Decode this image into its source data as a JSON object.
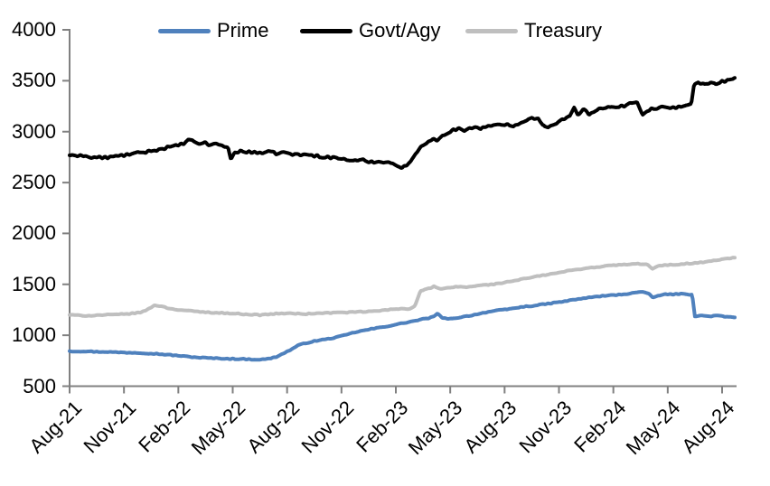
{
  "page": {
    "background": "#ffffff"
  },
  "legend": {
    "position": "top",
    "items": [
      {
        "label": "Prime",
        "color": "#4F81BD"
      },
      {
        "label": "Govt/Agy",
        "color": "#000000"
      },
      {
        "label": "Treasury",
        "color": "#BFBFBF"
      }
    ]
  },
  "axes": {
    "axis_color": "#808080",
    "y_labels": [
      "4000",
      "3500",
      "3000",
      "2500",
      "2000",
      "1500",
      "1000",
      "500"
    ],
    "x_labels": [
      "Aug-21",
      "Nov-21",
      "Feb-22",
      "May-22",
      "Aug-22",
      "Nov-22",
      "Feb-23",
      "May-23",
      "Aug-23",
      "Nov-23",
      "Feb-24",
      "May-24",
      "Aug-24"
    ]
  },
  "chart_data": {
    "type": "line",
    "title": "",
    "xlabel": "",
    "ylabel": "",
    "grid": false,
    "legend_position": "top",
    "x_axis": {
      "unit": "months since Aug-2021",
      "tick_labels": [
        "Aug-21",
        "Nov-21",
        "Feb-22",
        "May-22",
        "Aug-22",
        "Nov-22",
        "Feb-23",
        "May-23",
        "Aug-23",
        "Nov-23",
        "Feb-24",
        "May-24",
        "Aug-24"
      ],
      "tick_month_index": [
        0,
        3,
        6,
        9,
        12,
        15,
        18,
        21,
        24,
        27,
        30,
        33,
        36
      ]
    },
    "y_axis": {
      "min": 500,
      "max": 4000,
      "tick_step": 500,
      "ticks": [
        500,
        1000,
        1500,
        2000,
        2500,
        3000,
        3500,
        4000
      ]
    },
    "series": [
      {
        "name": "Prime",
        "color": "#4F81BD",
        "points": [
          [
            0,
            845
          ],
          [
            0.4,
            842
          ],
          [
            0.8,
            844
          ],
          [
            1.2,
            840
          ],
          [
            1.6,
            837
          ],
          [
            2,
            838
          ],
          [
            2.4,
            834
          ],
          [
            2.8,
            832
          ],
          [
            3.2,
            830
          ],
          [
            3.6,
            829
          ],
          [
            4,
            827
          ],
          [
            4.4,
            822
          ],
          [
            4.8,
            818
          ],
          [
            5.2,
            812
          ],
          [
            5.6,
            806
          ],
          [
            6,
            800
          ],
          [
            6.4,
            792
          ],
          [
            6.8,
            786
          ],
          [
            7.2,
            781
          ],
          [
            7.6,
            777
          ],
          [
            8,
            774
          ],
          [
            8.4,
            772
          ],
          [
            8.8,
            769
          ],
          [
            9.2,
            768
          ],
          [
            9.6,
            766
          ],
          [
            10,
            764
          ],
          [
            10.4,
            762
          ],
          [
            10.7,
            763
          ],
          [
            11,
            770
          ],
          [
            11.4,
            788
          ],
          [
            11.8,
            822
          ],
          [
            12.2,
            858
          ],
          [
            12.6,
            900
          ],
          [
            13,
            922
          ],
          [
            13.4,
            938
          ],
          [
            13.8,
            952
          ],
          [
            14.2,
            962
          ],
          [
            14.6,
            976
          ],
          [
            15,
            992
          ],
          [
            15.4,
            1012
          ],
          [
            15.8,
            1032
          ],
          [
            16.2,
            1046
          ],
          [
            16.6,
            1060
          ],
          [
            17,
            1072
          ],
          [
            17.4,
            1085
          ],
          [
            17.8,
            1098
          ],
          [
            18.2,
            1112
          ],
          [
            18.6,
            1126
          ],
          [
            19,
            1140
          ],
          [
            19.4,
            1155
          ],
          [
            19.8,
            1168
          ],
          [
            20.1,
            1185
          ],
          [
            20.3,
            1210
          ],
          [
            20.6,
            1170
          ],
          [
            20.9,
            1158
          ],
          [
            21.2,
            1168
          ],
          [
            21.6,
            1178
          ],
          [
            22,
            1190
          ],
          [
            22.4,
            1204
          ],
          [
            22.8,
            1220
          ],
          [
            23.2,
            1233
          ],
          [
            23.6,
            1243
          ],
          [
            24,
            1251
          ],
          [
            24.4,
            1262
          ],
          [
            24.8,
            1274
          ],
          [
            25.2,
            1283
          ],
          [
            25.6,
            1290
          ],
          [
            26,
            1300
          ],
          [
            26.4,
            1310
          ],
          [
            26.8,
            1320
          ],
          [
            27.2,
            1330
          ],
          [
            27.6,
            1342
          ],
          [
            28,
            1354
          ],
          [
            28.4,
            1364
          ],
          [
            28.8,
            1374
          ],
          [
            29.2,
            1382
          ],
          [
            29.6,
            1388
          ],
          [
            30,
            1394
          ],
          [
            30.4,
            1400
          ],
          [
            30.8,
            1408
          ],
          [
            31.2,
            1418
          ],
          [
            31.5,
            1428
          ],
          [
            31.8,
            1414
          ],
          [
            32,
            1402
          ],
          [
            32.2,
            1368
          ],
          [
            32.5,
            1392
          ],
          [
            32.8,
            1400
          ],
          [
            33.2,
            1402
          ],
          [
            33.6,
            1406
          ],
          [
            34,
            1403
          ],
          [
            34.35,
            1400
          ],
          [
            34.5,
            1186
          ],
          [
            34.9,
            1192
          ],
          [
            35.3,
            1187
          ],
          [
            35.7,
            1192
          ],
          [
            36.1,
            1184
          ],
          [
            36.4,
            1179
          ],
          [
            36.7,
            1175
          ]
        ]
      },
      {
        "name": "Govt/Agy",
        "color": "#000000",
        "points": [
          [
            0,
            2768
          ],
          [
            0.3,
            2755
          ],
          [
            0.6,
            2775
          ],
          [
            0.9,
            2758
          ],
          [
            1.2,
            2740
          ],
          [
            1.5,
            2752
          ],
          [
            1.8,
            2742
          ],
          [
            2.1,
            2748
          ],
          [
            2.4,
            2752
          ],
          [
            2.7,
            2762
          ],
          [
            3,
            2768
          ],
          [
            3.3,
            2778
          ],
          [
            3.6,
            2785
          ],
          [
            3.9,
            2792
          ],
          [
            4.2,
            2800
          ],
          [
            4.5,
            2812
          ],
          [
            4.8,
            2822
          ],
          [
            5.1,
            2830
          ],
          [
            5.4,
            2845
          ],
          [
            5.7,
            2852
          ],
          [
            6,
            2868
          ],
          [
            6.3,
            2882
          ],
          [
            6.55,
            2918
          ],
          [
            6.8,
            2905
          ],
          [
            7.1,
            2880
          ],
          [
            7.4,
            2895
          ],
          [
            7.7,
            2870
          ],
          [
            8,
            2878
          ],
          [
            8.3,
            2872
          ],
          [
            8.6,
            2852
          ],
          [
            8.75,
            2838
          ],
          [
            8.9,
            2722
          ],
          [
            9.1,
            2798
          ],
          [
            9.4,
            2808
          ],
          [
            9.8,
            2795
          ],
          [
            10.2,
            2802
          ],
          [
            10.6,
            2790
          ],
          [
            11,
            2798
          ],
          [
            11.4,
            2788
          ],
          [
            11.8,
            2795
          ],
          [
            12.2,
            2782
          ],
          [
            12.6,
            2770
          ],
          [
            13,
            2776
          ],
          [
            13.4,
            2765
          ],
          [
            13.8,
            2758
          ],
          [
            14.2,
            2750
          ],
          [
            14.6,
            2742
          ],
          [
            15,
            2735
          ],
          [
            15.4,
            2722
          ],
          [
            15.8,
            2712
          ],
          [
            16.2,
            2718
          ],
          [
            16.6,
            2702
          ],
          [
            17,
            2710
          ],
          [
            17.3,
            2692
          ],
          [
            17.6,
            2712
          ],
          [
            17.9,
            2680
          ],
          [
            18.1,
            2658
          ],
          [
            18.35,
            2645
          ],
          [
            18.6,
            2672
          ],
          [
            18.85,
            2712
          ],
          [
            19.1,
            2782
          ],
          [
            19.4,
            2862
          ],
          [
            19.7,
            2892
          ],
          [
            20,
            2928
          ],
          [
            20.3,
            2915
          ],
          [
            20.6,
            2958
          ],
          [
            20.9,
            2990
          ],
          [
            21.2,
            3020
          ],
          [
            21.5,
            3032
          ],
          [
            21.8,
            3012
          ],
          [
            22.1,
            3032
          ],
          [
            22.4,
            3046
          ],
          [
            22.7,
            3034
          ],
          [
            23,
            3048
          ],
          [
            23.4,
            3056
          ],
          [
            23.8,
            3066
          ],
          [
            24.2,
            3072
          ],
          [
            24.5,
            3060
          ],
          [
            24.8,
            3080
          ],
          [
            25.1,
            3108
          ],
          [
            25.5,
            3130
          ],
          [
            25.85,
            3138
          ],
          [
            26.1,
            3060
          ],
          [
            26.4,
            3050
          ],
          [
            26.7,
            3072
          ],
          [
            27,
            3098
          ],
          [
            27.3,
            3130
          ],
          [
            27.6,
            3150
          ],
          [
            27.85,
            3240
          ],
          [
            28.05,
            3150
          ],
          [
            28.35,
            3225
          ],
          [
            28.65,
            3170
          ],
          [
            28.95,
            3195
          ],
          [
            29.25,
            3240
          ],
          [
            29.55,
            3228
          ],
          [
            29.9,
            3250
          ],
          [
            30.3,
            3245
          ],
          [
            30.7,
            3258
          ],
          [
            31,
            3282
          ],
          [
            31.3,
            3298
          ],
          [
            31.6,
            3170
          ],
          [
            31.9,
            3208
          ],
          [
            32.2,
            3225
          ],
          [
            32.6,
            3240
          ],
          [
            33,
            3228
          ],
          [
            33.4,
            3240
          ],
          [
            33.8,
            3250
          ],
          [
            34.1,
            3258
          ],
          [
            34.3,
            3275
          ],
          [
            34.45,
            3458
          ],
          [
            34.7,
            3478
          ],
          [
            35,
            3462
          ],
          [
            35.3,
            3480
          ],
          [
            35.6,
            3468
          ],
          [
            35.9,
            3490
          ],
          [
            36.2,
            3500
          ],
          [
            36.5,
            3516
          ],
          [
            36.7,
            3528
          ]
        ]
      },
      {
        "name": "Treasury",
        "color": "#BFBFBF",
        "points": [
          [
            0,
            1200
          ],
          [
            0.5,
            1195
          ],
          [
            1,
            1192
          ],
          [
            1.5,
            1196
          ],
          [
            2,
            1200
          ],
          [
            2.5,
            1203
          ],
          [
            3,
            1207
          ],
          [
            3.5,
            1215
          ],
          [
            4,
            1228
          ],
          [
            4.35,
            1258
          ],
          [
            4.7,
            1295
          ],
          [
            5,
            1288
          ],
          [
            5.35,
            1270
          ],
          [
            5.7,
            1258
          ],
          [
            6,
            1250
          ],
          [
            6.5,
            1242
          ],
          [
            7,
            1233
          ],
          [
            7.5,
            1227
          ],
          [
            8,
            1222
          ],
          [
            8.5,
            1218
          ],
          [
            9,
            1214
          ],
          [
            9.5,
            1209
          ],
          [
            10,
            1204
          ],
          [
            10.5,
            1199
          ],
          [
            11,
            1207
          ],
          [
            11.5,
            1212
          ],
          [
            12,
            1216
          ],
          [
            12.5,
            1212
          ],
          [
            13,
            1209
          ],
          [
            13.5,
            1214
          ],
          [
            14,
            1218
          ],
          [
            14.5,
            1221
          ],
          [
            15,
            1224
          ],
          [
            15.5,
            1226
          ],
          [
            16,
            1229
          ],
          [
            16.5,
            1233
          ],
          [
            17,
            1239
          ],
          [
            17.5,
            1249
          ],
          [
            18,
            1257
          ],
          [
            18.4,
            1262
          ],
          [
            18.75,
            1258
          ],
          [
            19.05,
            1290
          ],
          [
            19.35,
            1432
          ],
          [
            19.6,
            1452
          ],
          [
            19.9,
            1462
          ],
          [
            20.1,
            1478
          ],
          [
            20.5,
            1452
          ],
          [
            20.8,
            1462
          ],
          [
            21.1,
            1470
          ],
          [
            21.5,
            1478
          ],
          [
            21.9,
            1472
          ],
          [
            22.3,
            1482
          ],
          [
            22.7,
            1490
          ],
          [
            23.1,
            1497
          ],
          [
            23.5,
            1504
          ],
          [
            24,
            1518
          ],
          [
            24.5,
            1535
          ],
          [
            25,
            1552
          ],
          [
            25.5,
            1568
          ],
          [
            26,
            1585
          ],
          [
            26.5,
            1600
          ],
          [
            27,
            1615
          ],
          [
            27.5,
            1632
          ],
          [
            28,
            1647
          ],
          [
            28.5,
            1658
          ],
          [
            29,
            1668
          ],
          [
            29.5,
            1678
          ],
          [
            30,
            1688
          ],
          [
            30.5,
            1693
          ],
          [
            31,
            1697
          ],
          [
            31.5,
            1701
          ],
          [
            31.9,
            1694
          ],
          [
            32.15,
            1650
          ],
          [
            32.45,
            1678
          ],
          [
            32.8,
            1688
          ],
          [
            33.2,
            1692
          ],
          [
            33.6,
            1697
          ],
          [
            34,
            1703
          ],
          [
            34.4,
            1708
          ],
          [
            34.8,
            1715
          ],
          [
            35.2,
            1723
          ],
          [
            35.6,
            1734
          ],
          [
            36,
            1746
          ],
          [
            36.4,
            1756
          ],
          [
            36.7,
            1762
          ]
        ]
      }
    ]
  }
}
